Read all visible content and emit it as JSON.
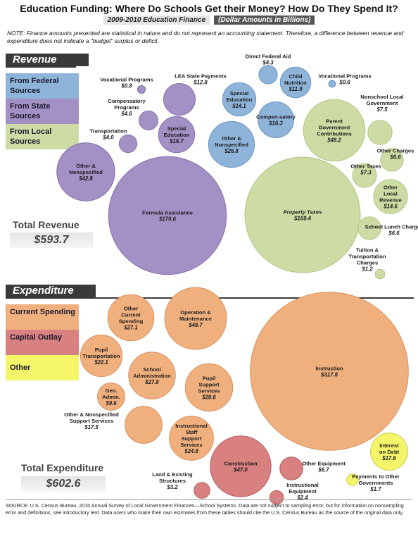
{
  "header": {
    "title": "Education Funding: Where Do Schools Get their Money? How Do They Spend It?",
    "subtitle": "2009-2010 Education Finance",
    "subtitle_units": "(Dollar Amounts in Billions)"
  },
  "note": "NOTE: Finance amounts presented are statistical in nature and do not represent an accounting statement.  Therefore, a difference between revenue and expenditure does not indicate a \"budget\" surplus or deficit.",
  "revenue": {
    "section_title": "Revenue",
    "legend": [
      {
        "label": "From Federal Sources",
        "color": "#8fb4d9"
      },
      {
        "label": "From State Sources",
        "color": "#a390c4"
      },
      {
        "label": "From Local Sources",
        "color": "#cddca4"
      }
    ],
    "total_label": "Total Revenue",
    "total_value": "$593.7"
  },
  "expenditure": {
    "section_title": "Expenditure",
    "legend": [
      {
        "label": "Current Spending",
        "color": "#f0b07e"
      },
      {
        "label": "Capital Outlay",
        "color": "#d98080"
      },
      {
        "label": "Other",
        "color": "#f5f56a"
      }
    ],
    "total_label": "Total Expenditure",
    "total_value": "$602.6"
  },
  "colors": {
    "federal": "#8fb4d9",
    "state": "#a390c4",
    "local": "#cddca4",
    "current": "#f0b07e",
    "capital": "#d98080",
    "other": "#f5f56a"
  },
  "chart_data": [
    {
      "type": "bubble",
      "name": "Revenue",
      "units": "Dollar Amounts in Billions",
      "items": [
        {
          "label": "Direct Federal Aid",
          "display": "$4.3",
          "value": 4.3,
          "group": "federal"
        },
        {
          "label": "Child Nutrition",
          "display": "$11.9",
          "value": 11.9,
          "group": "federal"
        },
        {
          "label": "Vocational Programs",
          "display": "$0.6",
          "value": 0.6,
          "group": "federal"
        },
        {
          "label": "Special Education",
          "display": "$14.1",
          "value": 14.1,
          "group": "federal"
        },
        {
          "label": "Compen-sat​ory",
          "display": "$16.3",
          "value": 16.3,
          "group": "federal"
        },
        {
          "label": "Other & Nonspecified",
          "display": "$26.8",
          "value": 26.8,
          "group": "federal"
        },
        {
          "label": "Vocational Programs",
          "display": "$0.8",
          "value": 0.8,
          "group": "state"
        },
        {
          "label": "LEA State Payments",
          "display": "$12.8",
          "value": 12.8,
          "group": "state"
        },
        {
          "label": "Compensatory Programs",
          "display": "$4.6",
          "value": 4.6,
          "group": "state"
        },
        {
          "label": "Transportation",
          "display": "$4.0",
          "value": 4.0,
          "group": "state"
        },
        {
          "label": "Special Education",
          "display": "$16.7",
          "value": 16.7,
          "group": "state"
        },
        {
          "label": "Other & Nonspecified",
          "display": "$42.8",
          "value": 42.8,
          "group": "state"
        },
        {
          "label": "Formula Assistance",
          "display": "$176.6",
          "value": 176.6,
          "group": "state"
        },
        {
          "label": "Parent Government Contributions",
          "display": "$48.2",
          "value": 48.2,
          "group": "local"
        },
        {
          "label": "Nonschool Local Government",
          "display": "$7.5",
          "value": 7.5,
          "group": "local"
        },
        {
          "label": "Other Charges",
          "display": "$6.6",
          "value": 6.6,
          "group": "local"
        },
        {
          "label": "Other Taxes",
          "display": "$7.3",
          "value": 7.3,
          "group": "local"
        },
        {
          "label": "Other Local Revenue",
          "display": "$14.6",
          "value": 14.6,
          "group": "local"
        },
        {
          "label": "Property Taxes",
          "display": "$169.4",
          "value": 169.4,
          "group": "local"
        },
        {
          "label": "School Lunch Charges",
          "display": "$6.6",
          "value": 6.6,
          "group": "local"
        },
        {
          "label": "Tuition & Transportation Charges",
          "display": "$1.2",
          "value": 1.2,
          "group": "local"
        }
      ]
    },
    {
      "type": "bubble",
      "name": "Expenditure",
      "units": "Dollar Amounts in Billions",
      "items": [
        {
          "label": "Other Current Spending",
          "display": "$27.1",
          "value": 27.1,
          "group": "current"
        },
        {
          "label": "Operation & Maintenance",
          "display": "$48.7",
          "value": 48.7,
          "group": "current"
        },
        {
          "label": "Pupil Transportation",
          "display": "$22.1",
          "value": 22.1,
          "group": "current"
        },
        {
          "label": "School Administration",
          "display": "$27.8",
          "value": 27.8,
          "group": "current"
        },
        {
          "label": "Pupil Support Services",
          "display": "$28.6",
          "value": 28.6,
          "group": "current"
        },
        {
          "label": "Gen. Admin.",
          "display": "$9.6",
          "value": 9.6,
          "group": "current"
        },
        {
          "label": "Other & Nonspecified Support Services",
          "display": "$17.5",
          "value": 17.5,
          "group": "current"
        },
        {
          "label": "Instructional Staff Support Services",
          "display": "$24.8",
          "value": 24.8,
          "group": "current"
        },
        {
          "label": "Instruction",
          "display": "$317.8",
          "value": 317.8,
          "group": "current"
        },
        {
          "label": "Construction",
          "display": "$47.0",
          "value": 47.0,
          "group": "capital"
        },
        {
          "label": "Other Equipment",
          "display": "$6.7",
          "value": 6.7,
          "group": "capital"
        },
        {
          "label": "Land & Existing Structures",
          "display": "$3.2",
          "value": 3.2,
          "group": "capital"
        },
        {
          "label": "Instructional Equipment",
          "display": "$2.4",
          "value": 2.4,
          "group": "capital"
        },
        {
          "label": "Interest on Debt",
          "display": "$17.6",
          "value": 17.6,
          "group": "other"
        },
        {
          "label": "Payments to Other Governments",
          "display": "$1.7",
          "value": 1.7,
          "group": "other"
        }
      ]
    }
  ],
  "source": "SOURCE: U.S. Census Bureau, 2010 Annual Survey of Local Government Finances—School Systems. Data are not subject to sampling error, but for information on nonsampling error and definitions, see introductory text. Data users who make their own estimates from these tables should cite the U.S. Census Bureau as the source of the original data only."
}
